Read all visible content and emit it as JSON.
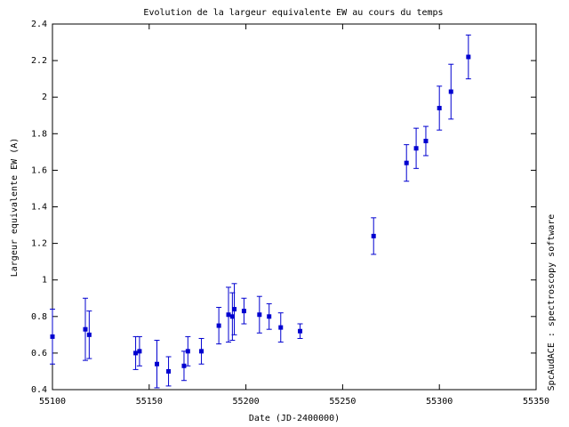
{
  "chart_data": {
    "type": "scatter",
    "title": "Evolution de la largeur equivalente EW au cours du temps",
    "x_label": "Date (JD-2400000)",
    "y_label": "Largeur equivalente EW (A)",
    "side_label": "SpcAudACE : spectroscopy software",
    "xlim": [
      55100,
      55350
    ],
    "xticks": [
      55100,
      55150,
      55200,
      55250,
      55300,
      55350
    ],
    "ylim": [
      0.4,
      2.4
    ],
    "yticks": [
      0.4,
      0.6,
      0.8,
      1,
      1.2,
      1.4,
      1.6,
      1.8,
      2,
      2.2,
      2.4
    ],
    "grid": false,
    "series": [
      {
        "color": "#0000d0",
        "x": [
          55100,
          55117,
          55119,
          55143,
          55145,
          55154,
          55160,
          55168,
          55170,
          55177,
          55186,
          55191,
          55193,
          55194,
          55199,
          55207,
          55212,
          55218,
          55228,
          55266,
          55283,
          55288,
          55293,
          55300,
          55306,
          55315
        ],
        "values": [
          0.69,
          0.73,
          0.7,
          0.6,
          0.61,
          0.54,
          0.5,
          0.53,
          0.61,
          0.61,
          0.75,
          0.81,
          0.8,
          0.84,
          0.83,
          0.81,
          0.8,
          0.74,
          0.72,
          1.24,
          1.64,
          1.72,
          1.76,
          1.94,
          2.03,
          2.22
        ],
        "errors": [
          0.15,
          0.17,
          0.13,
          0.09,
          0.08,
          0.13,
          0.08,
          0.08,
          0.08,
          0.07,
          0.1,
          0.15,
          0.13,
          0.14,
          0.07,
          0.1,
          0.07,
          0.08,
          0.04,
          0.1,
          0.1,
          0.11,
          0.08,
          0.12,
          0.15,
          0.12
        ]
      }
    ]
  }
}
